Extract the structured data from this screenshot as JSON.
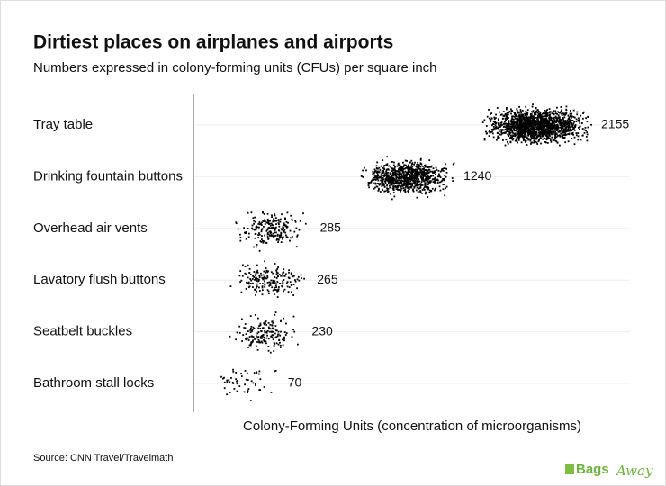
{
  "chart_data": {
    "type": "dotcloud",
    "title": "Dirtiest places on airplanes and airports",
    "subtitle": "Numbers expressed in colony-forming units (CFUs) per square inch",
    "categories": [
      "Tray table",
      "Drinking fountain buttons",
      "Overhead air vents",
      "Lavatory flush buttons",
      "Seatbelt buckles",
      "Bathroom stall locks"
    ],
    "values": [
      2155,
      1240,
      285,
      265,
      230,
      70
    ],
    "color": "#000000",
    "x_label": "Colony-Forming Units (concentration of microorganisms)",
    "grid": true
  },
  "source": "Source: CNN Travel/Travelmath",
  "logo": {
    "part1": "Bags",
    "part2": "Away"
  }
}
